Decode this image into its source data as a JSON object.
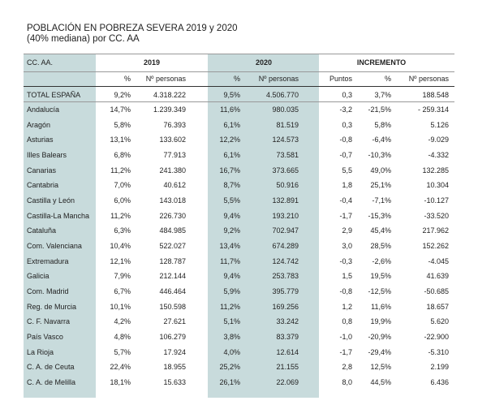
{
  "header": {
    "title": "POBLACIÓN EN POBREZA SEVERA 2019 y 2020",
    "subtitle": "(40% mediana) por CC. AA"
  },
  "table": {
    "groups": [
      "CC. AA.",
      "2019",
      "2020",
      "INCREMENTO"
    ],
    "subheaders": [
      "%",
      "Nº personas",
      "%",
      "Nº personas",
      "Puntos",
      "%",
      "Nº personas"
    ],
    "rows": [
      [
        "TOTAL ESPAÑA",
        "9,2%",
        "4.318.222",
        "9,5%",
        "4.506.770",
        "0,3",
        "3,7%",
        "188.548"
      ],
      [
        "Andalucía",
        "14,7%",
        "1.239.349",
        "11,6%",
        "980.035",
        "-3,2",
        "-21,5%",
        "- 259.314"
      ],
      [
        "Aragón",
        "5,8%",
        "76.393",
        "6,1%",
        "81.519",
        "0,3",
        "5,8%",
        "5.126"
      ],
      [
        "Asturias",
        "13,1%",
        "133.602",
        "12,2%",
        "124.573",
        "-0,8",
        "-6,4%",
        "-9.029"
      ],
      [
        "Illes Balears",
        "6,8%",
        "77.913",
        "6,1%",
        "73.581",
        "-0,7",
        "-10,3%",
        "-4.332"
      ],
      [
        "Canarias",
        "11,2%",
        "241.380",
        "16,7%",
        "373.665",
        "5,5",
        "49,0%",
        "132.285"
      ],
      [
        "Cantabria",
        "7,0%",
        "40.612",
        "8,7%",
        "50.916",
        "1,8",
        "25,1%",
        "10.304"
      ],
      [
        "Castilla y León",
        "6,0%",
        "143.018",
        "5,5%",
        "132.891",
        "-0,4",
        "-7,1%",
        "-10.127"
      ],
      [
        "Castilla-La Mancha",
        "11,2%",
        "226.730",
        "9,4%",
        "193.210",
        "-1,7",
        "-15,3%",
        "-33.520"
      ],
      [
        "Cataluña",
        "6,3%",
        "484.985",
        "9,2%",
        "702.947",
        "2,9",
        "45,4%",
        "217.962"
      ],
      [
        "Com. Valenciana",
        "10,4%",
        "522.027",
        "13,4%",
        "674.289",
        "3,0",
        "28,5%",
        "152.262"
      ],
      [
        "Extremadura",
        "12,1%",
        "128.787",
        "11,7%",
        "124.742",
        "-0,3",
        "-2,6%",
        "-4.045"
      ],
      [
        "Galicia",
        "7,9%",
        "212.144",
        "9,4%",
        "253.783",
        "1,5",
        "19,5%",
        "41.639"
      ],
      [
        "Com. Madrid",
        "6,7%",
        "446.464",
        "5,9%",
        "395.779",
        "-0,8",
        "-12,5%",
        "-50.685"
      ],
      [
        "Reg. de Murcia",
        "10,1%",
        "150.598",
        "11,2%",
        "169.256",
        "1,2",
        "11,6%",
        "18.657"
      ],
      [
        "C. F. Navarra",
        "4,2%",
        "27.621",
        "5,1%",
        "33.242",
        "0,8",
        "19,9%",
        "5.620"
      ],
      [
        "País Vasco",
        "4,8%",
        "106.279",
        "3,8%",
        "83.379",
        "-1,0",
        "-20,9%",
        "-22.900"
      ],
      [
        "La Rioja",
        "5,7%",
        "17.924",
        "4,0%",
        "12.614",
        "-1,7",
        "-29,4%",
        "-5.310"
      ],
      [
        "C. A. de Ceuta",
        "22,4%",
        "18.955",
        "25,2%",
        "21.155",
        "2,8",
        "12,5%",
        "2.199"
      ],
      [
        "C. A. de Melilla",
        "18,1%",
        "15.633",
        "26,1%",
        "22.069",
        "8,0",
        "44,5%",
        "6.436"
      ]
    ]
  }
}
